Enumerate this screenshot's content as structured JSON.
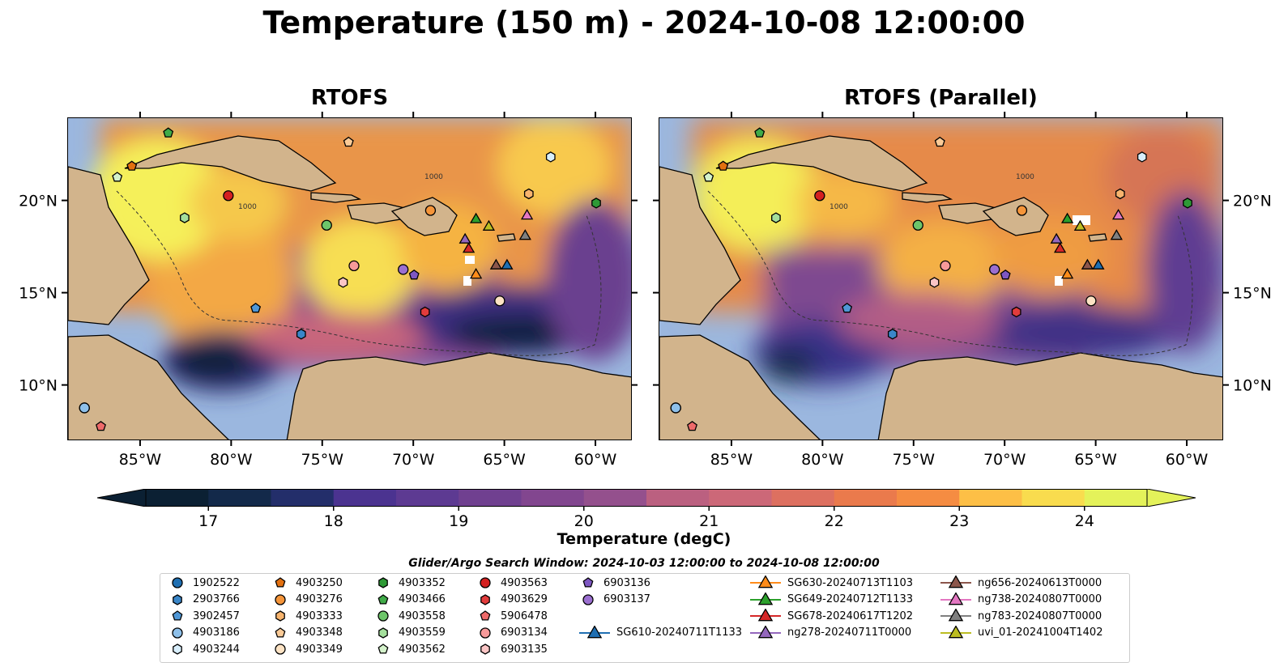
{
  "title": "Temperature (150 m) - 2024-10-08 12:00:00",
  "panels": [
    {
      "title": "RTOFS"
    },
    {
      "title": "RTOFS (Parallel)"
    }
  ],
  "axes": {
    "lon_labels": [
      "85°W",
      "80°W",
      "75°W",
      "70°W",
      "65°W",
      "60°W"
    ],
    "lon_values": [
      -85,
      -80,
      -75,
      -70,
      -65,
      -60
    ],
    "lat_labels": [
      "20°N",
      "15°N",
      "10°N"
    ],
    "lat_values": [
      20,
      15,
      10
    ],
    "lon_range": [
      -89,
      -58
    ],
    "lat_range": [
      7,
      24.5
    ]
  },
  "colorbar": {
    "label": "Temperature (degC)",
    "ticks": [
      "17",
      "18",
      "19",
      "20",
      "21",
      "22",
      "23",
      "24"
    ],
    "min": 16.75,
    "max": 24.5,
    "colors": [
      "#0b2033",
      "#13294a",
      "#232e6a",
      "#3a2f88",
      "#4b3390",
      "#5d3a92",
      "#704090",
      "#82468f",
      "#94508d",
      "#a85888",
      "#bb6080",
      "#cc6878",
      "#dd7060",
      "#ea7a4c",
      "#f58c42",
      "#fba23f",
      "#fdbf46",
      "#f9dc4e",
      "#e4f25a"
    ]
  },
  "bathymetry_label": "1000",
  "search_window": "Glider/Argo Search Window: 2024-10-03 12:00:00 to 2024-10-08 12:00:00",
  "legend": [
    {
      "label": "1902522",
      "shape": "circle",
      "color": "#1f6fb2"
    },
    {
      "label": "2903766",
      "shape": "hexagon",
      "color": "#3a86c8"
    },
    {
      "label": "3902457",
      "shape": "pentagon",
      "color": "#4f97d6"
    },
    {
      "label": "4903186",
      "shape": "circle",
      "color": "#8ec0ea"
    },
    {
      "label": "4903244",
      "shape": "hexagon",
      "color": "#d8eefc"
    },
    {
      "label": "4903250",
      "shape": "pentagon",
      "color": "#e3700f"
    },
    {
      "label": "4903276",
      "shape": "circle",
      "color": "#f5953a"
    },
    {
      "label": "4903333",
      "shape": "hexagon",
      "color": "#f7b46e"
    },
    {
      "label": "4903348",
      "shape": "pentagon",
      "color": "#fbcb97"
    },
    {
      "label": "4903349",
      "shape": "circle",
      "color": "#fde3c4"
    },
    {
      "label": "4903352",
      "shape": "hexagon",
      "color": "#2e9a36"
    },
    {
      "label": "4903466",
      "shape": "pentagon",
      "color": "#40ab48"
    },
    {
      "label": "4903558",
      "shape": "circle",
      "color": "#6dc56a"
    },
    {
      "label": "4903559",
      "shape": "hexagon",
      "color": "#a4df9c"
    },
    {
      "label": "4903562",
      "shape": "pentagon",
      "color": "#d4f2cb"
    },
    {
      "label": "4903563",
      "shape": "circle",
      "color": "#d42020"
    },
    {
      "label": "4903629",
      "shape": "hexagon",
      "color": "#e23c3c"
    },
    {
      "label": "5906478",
      "shape": "pentagon",
      "color": "#ee6a6a"
    },
    {
      "label": "6903134",
      "shape": "circle",
      "color": "#f79a9a"
    },
    {
      "label": "6903135",
      "shape": "hexagon",
      "color": "#fbc5c5"
    },
    {
      "label": "6903136",
      "shape": "pentagon",
      "color": "#7e57c2"
    },
    {
      "label": "6903137",
      "shape": "circle",
      "color": "#9b6fd0"
    },
    {
      "label": "SG610-20240711T1133",
      "shape": "triangle",
      "color": "#1f6fb2"
    },
    {
      "label": "SG630-20240713T1103",
      "shape": "triangle",
      "color": "#ff8c1a"
    },
    {
      "label": "SG649-20240712T1133",
      "shape": "triangle",
      "color": "#2ca02c"
    },
    {
      "label": "SG678-20240617T1202",
      "shape": "triangle",
      "color": "#d62728"
    },
    {
      "label": "ng278-20240711T0000",
      "shape": "triangle",
      "color": "#9467bd"
    },
    {
      "label": "ng656-20240613T0000",
      "shape": "triangle",
      "color": "#8c564b"
    },
    {
      "label": "ng738-20240807T0000",
      "shape": "triangle",
      "color": "#e377c2"
    },
    {
      "label": "ng783-20240807T0000",
      "shape": "triangle",
      "color": "#7f7f7f"
    },
    {
      "label": "uvi_01-20241004T1402",
      "shape": "triangle",
      "color": "#bcbd22"
    }
  ],
  "markers": [
    {
      "id": "1902522",
      "lon": -88.1,
      "lat": 8.8
    },
    {
      "id": "2903766",
      "lon": -76.2,
      "lat": 12.8
    },
    {
      "id": "3902457",
      "lon": -78.7,
      "lat": 14.2
    },
    {
      "id": "4903186",
      "lon": -88.1,
      "lat": 8.8
    },
    {
      "id": "4903244",
      "lon": -62.5,
      "lat": 22.4
    },
    {
      "id": "4903250",
      "lon": -85.5,
      "lat": 21.9
    },
    {
      "id": "4903276",
      "lon": -69.1,
      "lat": 19.5
    },
    {
      "id": "4903333",
      "lon": -63.7,
      "lat": 20.4
    },
    {
      "id": "4903348",
      "lon": -73.6,
      "lat": 23.2
    },
    {
      "id": "4903349",
      "lon": -65.3,
      "lat": 14.6
    },
    {
      "id": "4903352",
      "lon": -60.0,
      "lat": 19.9
    },
    {
      "id": "4903466",
      "lon": -83.5,
      "lat": 23.7
    },
    {
      "id": "4903558",
      "lon": -74.8,
      "lat": 18.7
    },
    {
      "id": "4903559",
      "lon": -82.6,
      "lat": 19.1
    },
    {
      "id": "4903562",
      "lon": -86.3,
      "lat": 21.3
    },
    {
      "id": "4903563",
      "lon": -80.2,
      "lat": 20.3
    },
    {
      "id": "4903629",
      "lon": -69.4,
      "lat": 14.0
    },
    {
      "id": "5906478",
      "lon": -87.2,
      "lat": 7.8
    },
    {
      "id": "6903134",
      "lon": -73.3,
      "lat": 16.5
    },
    {
      "id": "6903135",
      "lon": -73.9,
      "lat": 15.6
    },
    {
      "id": "6903136",
      "lon": -70.0,
      "lat": 16.0
    },
    {
      "id": "6903137",
      "lon": -70.6,
      "lat": 16.3
    },
    {
      "id": "SG610-20240711T1133",
      "lon": -64.9,
      "lat": 16.5
    },
    {
      "id": "SG630-20240713T1103",
      "lon": -66.6,
      "lat": 16.0
    },
    {
      "id": "SG649-20240712T1133",
      "lon": -66.6,
      "lat": 19.0
    },
    {
      "id": "SG678-20240617T1202",
      "lon": -67.0,
      "lat": 17.4
    },
    {
      "id": "ng278-20240711T0000",
      "lon": -67.2,
      "lat": 17.9
    },
    {
      "id": "ng656-20240613T0000",
      "lon": -65.5,
      "lat": 16.5
    },
    {
      "id": "ng738-20240807T0000",
      "lon": -63.8,
      "lat": 19.2
    },
    {
      "id": "ng783-20240807T0000",
      "lon": -63.9,
      "lat": 18.1
    },
    {
      "id": "uvi_01-20241004T1402",
      "lon": -65.9,
      "lat": 18.6
    }
  ]
}
